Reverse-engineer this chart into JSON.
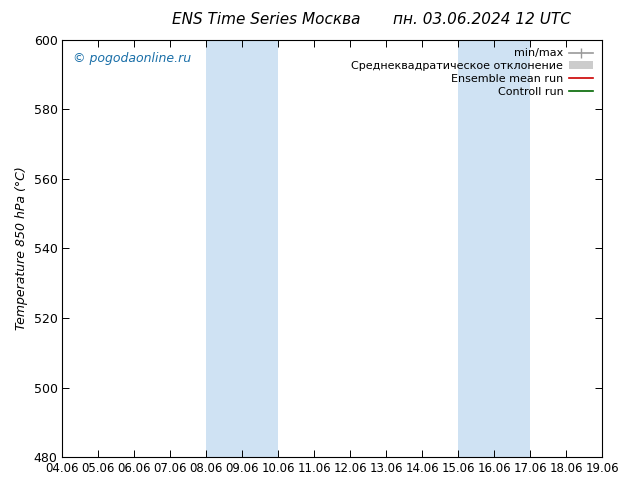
{
  "title": "ENS Time Series Москва",
  "title_right": "пн. 03.06.2024 12 UTC",
  "ylabel": "Temperature 850 hPa (°C)",
  "xlabel_ticks": [
    "04.06",
    "05.06",
    "06.06",
    "07.06",
    "08.06",
    "09.06",
    "10.06",
    "11.06",
    "12.06",
    "13.06",
    "14.06",
    "15.06",
    "16.06",
    "17.06",
    "18.06",
    "19.06"
  ],
  "xlim": [
    0,
    15
  ],
  "ylim": [
    480,
    600
  ],
  "yticks": [
    480,
    500,
    520,
    540,
    560,
    580,
    600
  ],
  "shaded_regions": [
    {
      "xmin": 4,
      "xmax": 6,
      "color": "#cfe2f3"
    },
    {
      "xmin": 11,
      "xmax": 13,
      "color": "#cfe2f3"
    }
  ],
  "watermark": "© pogodaonline.ru",
  "watermark_color": "#1a6fa8",
  "background_color": "#ffffff",
  "legend_items": [
    {
      "label": "min/max",
      "color": "#999999",
      "lw": 1.2
    },
    {
      "label": "Среднеквадратическое отклонение",
      "color": "#cccccc",
      "lw": 5
    },
    {
      "label": "Ensemble mean run",
      "color": "#cc0000",
      "lw": 1.2
    },
    {
      "label": "Controll run",
      "color": "#006600",
      "lw": 1.2
    }
  ],
  "grid_color": "#dddddd",
  "spine_color": "#000000",
  "figsize": [
    6.34,
    4.9
  ],
  "dpi": 100
}
